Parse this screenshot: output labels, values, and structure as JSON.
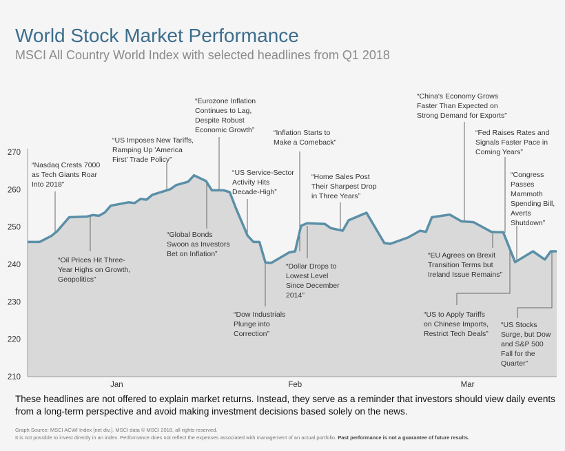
{
  "header": {
    "title": "World Stock Market Performance",
    "subtitle": "MSCI All Country World Index with selected headlines from Q1 2018"
  },
  "chart_data": {
    "type": "area",
    "title": "World Stock Market Performance",
    "subtitle": "MSCI All Country World Index with selected headlines from Q1 2018",
    "xlabel": "",
    "ylabel": "",
    "ylim": [
      210,
      270
    ],
    "yticks": [
      210,
      220,
      230,
      240,
      250,
      260,
      270
    ],
    "xticks": [
      {
        "label": "Jan",
        "date": "2018-01-16"
      },
      {
        "label": "Feb",
        "date": "2018-02-15"
      },
      {
        "label": "Mar",
        "date": "2018-03-16"
      }
    ],
    "xlim": [
      "2018-01-01",
      "2018-03-31"
    ],
    "grid": false,
    "line_color": "#5b8fa8",
    "fill_color": "#d9d9d9",
    "series": [
      {
        "x": [
          "2018-01-01",
          "2018-01-03",
          "2018-01-05",
          "2018-01-06",
          "2018-01-08",
          "2018-01-11",
          "2018-01-12",
          "2018-01-13",
          "2018-01-14",
          "2018-01-15",
          "2018-01-18",
          "2018-01-19",
          "2018-01-20",
          "2018-01-21",
          "2018-01-22",
          "2018-01-25",
          "2018-01-26",
          "2018-01-28",
          "2018-01-29",
          "2018-01-31",
          "2018-02-01",
          "2018-02-03",
          "2018-02-04",
          "2018-02-05",
          "2018-02-07",
          "2018-02-08",
          "2018-02-09",
          "2018-02-10",
          "2018-02-11",
          "2018-02-14",
          "2018-02-15",
          "2018-02-16",
          "2018-02-17",
          "2018-02-20",
          "2018-02-21",
          "2018-02-23",
          "2018-02-24",
          "2018-02-27",
          "2018-03-02",
          "2018-03-03",
          "2018-03-06",
          "2018-03-07",
          "2018-03-08",
          "2018-03-09",
          "2018-03-10",
          "2018-03-13",
          "2018-03-15",
          "2018-03-17",
          "2018-03-20",
          "2018-03-21",
          "2018-03-22",
          "2018-03-24",
          "2018-03-27",
          "2018-03-29",
          "2018-03-30",
          "2018-03-31"
        ],
        "values": [
          246.0,
          246.0,
          247.6,
          248.9,
          252.6,
          252.8,
          253.2,
          253.0,
          253.9,
          255.7,
          256.6,
          256.4,
          257.5,
          257.3,
          258.6,
          260.1,
          261.2,
          262.1,
          263.8,
          262.3,
          259.8,
          259.8,
          259.3,
          255.2,
          247.7,
          246.0,
          246.0,
          240.5,
          240.4,
          243.2,
          243.5,
          250.3,
          251.0,
          250.8,
          249.7,
          249.0,
          251.8,
          253.8,
          245.7,
          245.5,
          247.2,
          248.1,
          249.0,
          248.7,
          252.6,
          253.3,
          251.5,
          251.3,
          248.7,
          248.6,
          248.6,
          240.6,
          243.5,
          241.3,
          243.5,
          243.5
        ]
      }
    ],
    "annotations": [
      "“Nasdaq Crests 7000\n as Tech Giants Roar\n Into 2018”",
      "“Oil Prices Hit Three-\n Year Highs on Growth,\n Geopolitics”",
      "“US Imposes New Tariffs,\n Ramping Up 'America\n First' Trade Policy”",
      "“Eurozone Inflation\n Continues to Lag,\n Despite Robust\n Economic Growth”",
      "“Global Bonds\n Swoon as Investors\n Bet on Inflation”",
      "“US Service-Sector\n Activity Hits\n Decade-High”",
      "“Dow Industrials\n Plunge into\n Correction”",
      "“Inflation Starts to\n Make a Comeback”",
      "“Dollar Drops to\n Lowest Level\n Since December\n 2014”",
      "“Home Sales Post\n Their Sharpest Drop\n in Three Years”",
      "“China's Economy Grows\n Faster Than Expected on\n Strong Demand for Exports”",
      "“EU Agrees on Brexit\n Transition Terms but\n Ireland Issue Remains”",
      "“Fed Raises Rates and\n Signals Faster Pace in\n Coming Years”",
      "“US to Apply Tariffs\n on Chinese Imports,\n Restrict Tech Deals”",
      "“Congress\n Passes\n Mammoth\n Spending Bill,\n Averts\n Shutdown”",
      "“US Stocks\n Surge, but Dow\n and S&P 500\n Fall for the\n Quarter”"
    ]
  },
  "footer": {
    "note": "These headlines are not offered to explain market returns. Instead, they serve as a reminder that investors should view daily events from a long-term perspective and avoid making investment decisions based solely on the news.",
    "source": "Graph Source: MSCI ACWI Index [net div.]. MSCI data © MSCI 2018, all rights reserved.",
    "disclaimer": "It is not possible to invest directly in an index. Performance does not reflect the expenses associated with management of an actual portfolio.",
    "disclaimer_bold": "Past performance is not a guarantee of future results."
  }
}
